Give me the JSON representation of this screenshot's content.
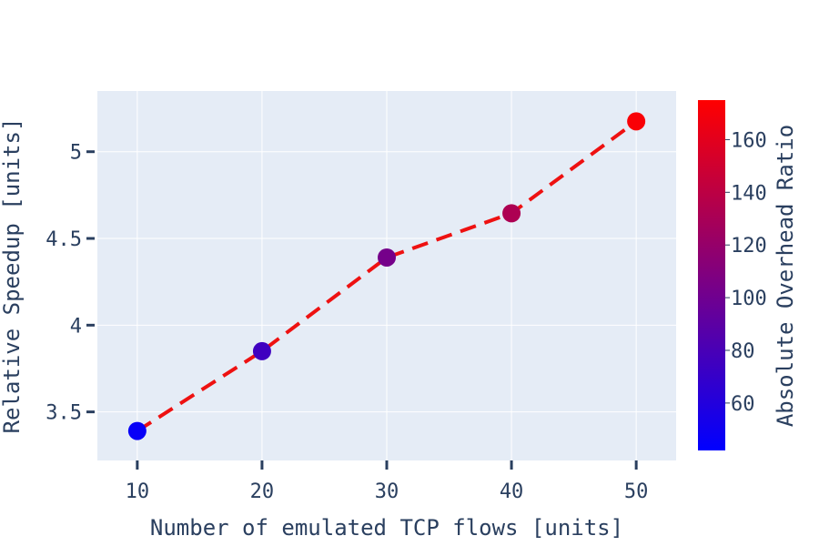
{
  "chart_data": {
    "type": "scatter",
    "mode": "lines+markers",
    "x": [
      10,
      20,
      30,
      40,
      50
    ],
    "y": [
      3.39,
      3.85,
      4.39,
      4.645,
      5.175
    ],
    "color_values": [
      46,
      75,
      103,
      132,
      172
    ],
    "xlabel": "Number of emulated TCP flows [units]",
    "ylabel": "Relative Speedup [units]",
    "x_ticks": [
      10,
      20,
      30,
      40,
      50
    ],
    "y_ticks": [
      3.5,
      4,
      4.5,
      5
    ],
    "y_tick_labels": [
      "3.5",
      "4",
      "4.5",
      "5"
    ],
    "xlim": [
      6.8,
      53.2
    ],
    "ylim": [
      3.22,
      5.35
    ],
    "grid": true,
    "line": {
      "color": "#ee1111",
      "dash": "dashed"
    },
    "colorbar": {
      "title": "Absolute Overhead Ratio",
      "range": [
        42,
        175
      ],
      "ticks": [
        60,
        80,
        100,
        120,
        140,
        160
      ],
      "colorscale": [
        "#0000ff",
        "#ff0000"
      ]
    },
    "colors": {
      "plot_background": "#e5ecf6",
      "grid": "#ffffff",
      "text": "#2a3f5f"
    }
  }
}
